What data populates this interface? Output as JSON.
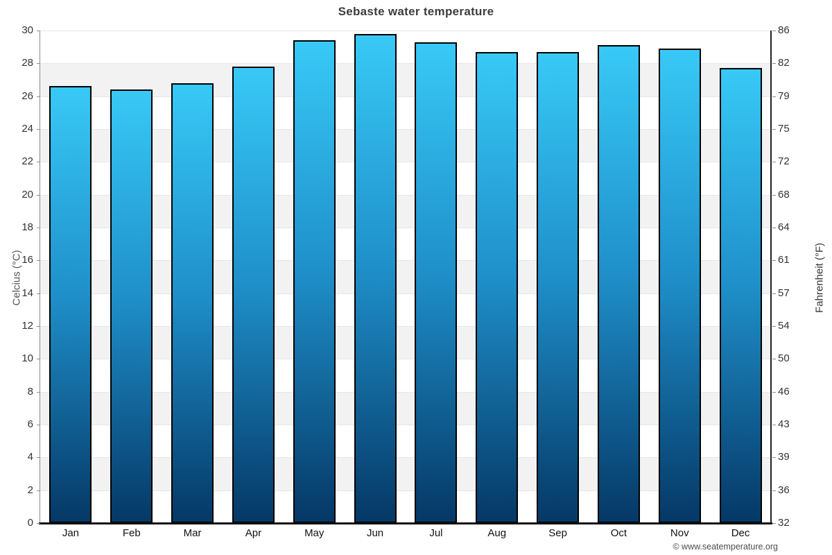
{
  "title": "Sebaste water temperature",
  "watermark": "© www.seatemperature.org",
  "axes": {
    "left_title": "Celcius (°C)",
    "right_title": "Fahrenheit (°F)"
  },
  "chart_data": {
    "type": "bar",
    "title": "Sebaste water temperature",
    "categories": [
      "Jan",
      "Feb",
      "Mar",
      "Apr",
      "May",
      "Jun",
      "Jul",
      "Aug",
      "Sep",
      "Oct",
      "Nov",
      "Dec"
    ],
    "values": [
      26.6,
      26.4,
      26.8,
      27.8,
      29.4,
      29.8,
      29.3,
      28.7,
      28.7,
      29.1,
      28.9,
      27.7
    ],
    "unit": "°C",
    "xlabel": "",
    "ylabel_left": "Celcius (°C)",
    "ylabel_right": "Fahrenheit (°F)",
    "ylim": [
      0,
      30
    ],
    "yticks_celsius": [
      "30",
      "28",
      "26",
      "24",
      "22",
      "20",
      "18",
      "16",
      "14",
      "12",
      "10",
      "8",
      "6",
      "4",
      "2",
      "0"
    ],
    "yticks_fahrenheit": [
      "86",
      "82",
      "79",
      "75",
      "72",
      "68",
      "64",
      "61",
      "57",
      "54",
      "50",
      "46",
      "43",
      "39",
      "36",
      "32"
    ],
    "grid": "horizontal-striped-bands",
    "legend": "none",
    "colors": {
      "bar_gradient_top": "#38c9f7",
      "bar_gradient_mid": "#1f8fc9",
      "bar_gradient_bottom": "#053866",
      "bar_border": "#000000",
      "stripe_fill": "#f2f2f2",
      "gridline": "#e6e6e6",
      "title_text": "#3d3d3d",
      "tick_text": "#333333"
    }
  }
}
